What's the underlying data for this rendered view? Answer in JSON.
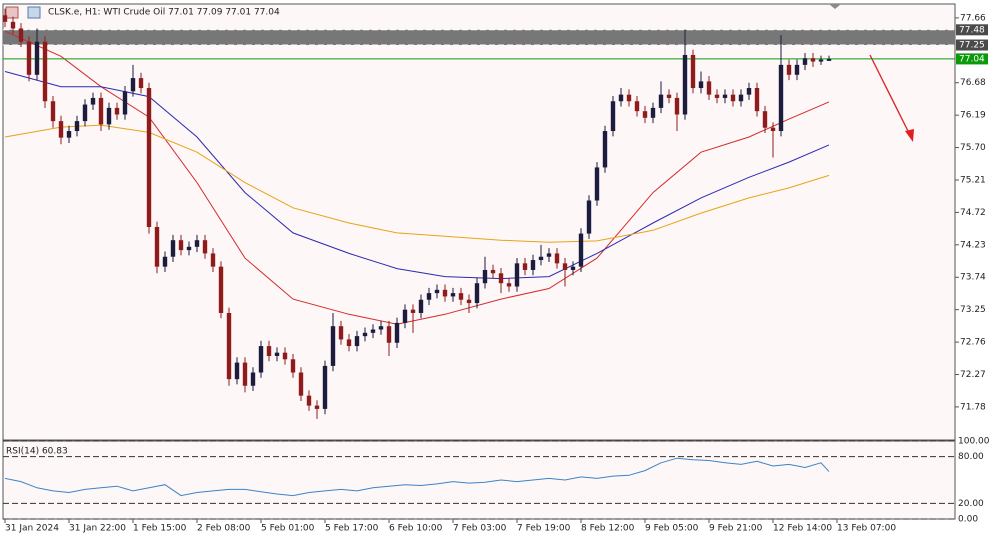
{
  "chart_data": {
    "type": "candlestick",
    "title": "CLSK.e, H1:  WTI Crude Oil  77.01 77.09 77.01 77.04",
    "bull_color": "#1c1c3c",
    "bear_color": "#8e1c1c",
    "candles": [
      [
        77.7,
        77.8,
        77.52,
        77.6
      ],
      [
        77.6,
        77.68,
        77.42,
        77.5
      ],
      [
        77.5,
        77.58,
        77.22,
        77.3
      ],
      [
        77.3,
        77.38,
        76.7,
        76.8
      ],
      [
        76.8,
        77.5,
        76.72,
        77.3
      ],
      [
        77.3,
        77.38,
        76.3,
        76.4
      ],
      [
        76.4,
        76.48,
        76.0,
        76.1
      ],
      [
        76.1,
        76.18,
        75.75,
        75.85
      ],
      [
        75.85,
        76.03,
        75.77,
        75.95
      ],
      [
        75.95,
        76.18,
        75.87,
        76.1
      ],
      [
        76.1,
        76.43,
        76.02,
        76.35
      ],
      [
        76.35,
        76.53,
        76.27,
        76.45
      ],
      [
        76.45,
        76.53,
        75.95,
        76.05
      ],
      [
        76.05,
        76.38,
        75.97,
        76.3
      ],
      [
        76.3,
        76.38,
        76.12,
        76.2
      ],
      [
        76.2,
        76.63,
        76.12,
        76.55
      ],
      [
        76.55,
        76.95,
        76.47,
        76.75
      ],
      [
        76.75,
        76.83,
        76.52,
        76.6
      ],
      [
        76.6,
        76.68,
        74.4,
        74.5
      ],
      [
        74.5,
        74.58,
        73.8,
        73.9
      ],
      [
        73.9,
        74.13,
        73.82,
        74.05
      ],
      [
        74.05,
        74.38,
        73.97,
        74.3
      ],
      [
        74.3,
        74.38,
        74.07,
        74.15
      ],
      [
        74.15,
        74.28,
        74.07,
        74.2
      ],
      [
        74.2,
        74.38,
        74.12,
        74.3
      ],
      [
        74.3,
        74.38,
        74.02,
        74.1
      ],
      [
        74.1,
        74.18,
        73.82,
        73.9
      ],
      [
        73.9,
        73.98,
        73.12,
        73.2
      ],
      [
        73.2,
        73.28,
        72.1,
        72.2
      ],
      [
        72.2,
        72.53,
        72.12,
        72.45
      ],
      [
        72.45,
        72.53,
        72.0,
        72.1
      ],
      [
        72.1,
        72.38,
        72.02,
        72.3
      ],
      [
        72.3,
        72.78,
        72.22,
        72.7
      ],
      [
        72.7,
        72.78,
        72.47,
        72.55
      ],
      [
        72.55,
        72.68,
        72.47,
        72.6
      ],
      [
        72.6,
        72.68,
        72.42,
        72.5
      ],
      [
        72.5,
        72.58,
        72.22,
        72.3
      ],
      [
        72.3,
        72.38,
        71.87,
        71.95
      ],
      [
        71.95,
        72.03,
        71.72,
        71.8
      ],
      [
        71.8,
        71.88,
        71.6,
        71.75
      ],
      [
        71.75,
        72.48,
        71.67,
        72.4
      ],
      [
        72.4,
        73.2,
        72.32,
        73.0
      ],
      [
        73.0,
        73.08,
        72.72,
        72.8
      ],
      [
        72.8,
        72.88,
        72.62,
        72.7
      ],
      [
        72.7,
        72.93,
        72.62,
        72.85
      ],
      [
        72.85,
        72.98,
        72.77,
        72.9
      ],
      [
        72.9,
        73.03,
        72.82,
        72.95
      ],
      [
        72.95,
        73.08,
        72.87,
        73.0
      ],
      [
        73.0,
        73.08,
        72.55,
        72.75
      ],
      [
        72.75,
        73.13,
        72.67,
        73.05
      ],
      [
        73.05,
        73.33,
        72.97,
        73.25
      ],
      [
        73.25,
        73.33,
        72.9,
        73.2
      ],
      [
        73.2,
        73.48,
        73.12,
        73.4
      ],
      [
        73.4,
        73.58,
        73.32,
        73.5
      ],
      [
        73.5,
        73.63,
        73.42,
        73.55
      ],
      [
        73.55,
        73.63,
        73.37,
        73.45
      ],
      [
        73.45,
        73.58,
        73.37,
        73.5
      ],
      [
        73.5,
        73.58,
        73.32,
        73.4
      ],
      [
        73.4,
        73.48,
        73.2,
        73.35
      ],
      [
        73.35,
        73.73,
        73.27,
        73.65
      ],
      [
        73.65,
        74.05,
        73.57,
        73.85
      ],
      [
        73.85,
        73.93,
        73.72,
        73.8
      ],
      [
        73.8,
        73.88,
        73.5,
        73.65
      ],
      [
        73.65,
        73.73,
        73.52,
        73.6
      ],
      [
        73.6,
        74.03,
        73.52,
        73.95
      ],
      [
        73.95,
        74.03,
        73.77,
        73.85
      ],
      [
        73.85,
        74.08,
        73.77,
        74.0
      ],
      [
        74.0,
        74.23,
        73.92,
        74.05
      ],
      [
        74.05,
        74.18,
        73.97,
        74.1
      ],
      [
        74.1,
        74.18,
        73.87,
        73.95
      ],
      [
        73.95,
        74.03,
        73.6,
        73.85
      ],
      [
        73.85,
        73.98,
        73.77,
        73.9
      ],
      [
        73.9,
        74.48,
        73.82,
        74.4
      ],
      [
        74.4,
        74.98,
        74.32,
        74.9
      ],
      [
        74.9,
        75.48,
        74.82,
        75.4
      ],
      [
        75.4,
        76.03,
        75.32,
        75.95
      ],
      [
        75.95,
        76.48,
        75.87,
        76.4
      ],
      [
        76.4,
        76.6,
        76.32,
        76.5
      ],
      [
        76.5,
        76.58,
        76.32,
        76.4
      ],
      [
        76.4,
        76.48,
        76.17,
        76.25
      ],
      [
        76.25,
        76.33,
        76.07,
        76.15
      ],
      [
        76.15,
        76.38,
        76.07,
        76.3
      ],
      [
        76.3,
        76.7,
        76.22,
        76.5
      ],
      [
        76.5,
        76.58,
        76.37,
        76.45
      ],
      [
        76.45,
        76.53,
        75.95,
        76.2
      ],
      [
        76.2,
        77.48,
        76.12,
        77.1
      ],
      [
        77.1,
        77.18,
        76.52,
        76.6
      ],
      [
        76.6,
        76.85,
        76.52,
        76.7
      ],
      [
        76.7,
        76.78,
        76.42,
        76.5
      ],
      [
        76.5,
        76.58,
        76.37,
        76.45
      ],
      [
        76.45,
        76.58,
        76.37,
        76.5
      ],
      [
        76.5,
        76.58,
        76.32,
        76.4
      ],
      [
        76.4,
        76.58,
        76.32,
        76.5
      ],
      [
        76.5,
        76.68,
        76.42,
        76.6
      ],
      [
        76.6,
        76.68,
        76.17,
        76.25
      ],
      [
        76.25,
        76.33,
        75.92,
        76.0
      ],
      [
        76.0,
        76.08,
        75.55,
        75.95
      ],
      [
        75.95,
        77.4,
        75.87,
        76.95
      ],
      [
        76.95,
        77.03,
        76.72,
        76.8
      ],
      [
        76.8,
        77.03,
        76.72,
        76.95
      ],
      [
        76.95,
        77.13,
        76.87,
        77.05
      ],
      [
        77.05,
        77.13,
        76.92,
        77.0
      ],
      [
        77.0,
        77.09,
        76.95,
        77.03
      ],
      [
        77.01,
        77.09,
        77.01,
        77.04
      ]
    ],
    "moving_averages": [
      {
        "color": "#d42a2a",
        "x": [
          0,
          7,
          12,
          18,
          24,
          30,
          36,
          43,
          49,
          55,
          62,
          68,
          74,
          81,
          87,
          93,
          98,
          103
        ],
        "values": [
          77.46,
          77.08,
          76.62,
          76.16,
          75.17,
          74.03,
          73.41,
          73.18,
          73.03,
          73.18,
          73.41,
          73.57,
          74.03,
          75.02,
          75.63,
          75.86,
          76.13,
          76.39
        ]
      },
      {
        "color": "#2a2ab4",
        "x": [
          0,
          7,
          12,
          18,
          24,
          30,
          36,
          43,
          49,
          55,
          62,
          68,
          74,
          81,
          87,
          93,
          98,
          103
        ],
        "values": [
          76.85,
          76.62,
          76.62,
          76.47,
          75.86,
          75.02,
          74.41,
          74.1,
          73.87,
          73.75,
          73.72,
          73.75,
          74.1,
          74.56,
          74.94,
          75.25,
          75.48,
          75.74
        ]
      },
      {
        "color": "#e8a317",
        "x": [
          0,
          7,
          12,
          18,
          24,
          30,
          36,
          43,
          49,
          55,
          62,
          68,
          74,
          81,
          87,
          93,
          98,
          103
        ],
        "values": [
          75.86,
          76.01,
          76.04,
          75.93,
          75.63,
          75.17,
          74.79,
          74.56,
          74.41,
          74.36,
          74.3,
          74.27,
          74.29,
          74.45,
          74.71,
          74.94,
          75.09,
          75.28
        ]
      }
    ],
    "zone": [
      77.25,
      77.48
    ],
    "zone_color": "#777777",
    "price_labels": [
      {
        "value": 77.48,
        "color": "#4a4a4a"
      },
      {
        "value": 77.25,
        "color": "#4a4a4a"
      },
      {
        "value": 77.04,
        "color": "#0a9a0a"
      }
    ],
    "current_price_line": {
      "value": 77.04,
      "color": "#0a9a0a"
    },
    "xlim": [
      -0.25,
      118.75
    ],
    "xticks": [
      {
        "value": 0,
        "label": "31 Jan 2024"
      },
      {
        "value": 8,
        "label": "31 Jan 22:00"
      },
      {
        "value": 16,
        "label": "1 Feb 15:00"
      },
      {
        "value": 24,
        "label": "2 Feb 08:00"
      },
      {
        "value": 32,
        "label": "5 Feb 01:00"
      },
      {
        "value": 40,
        "label": "5 Feb 17:00"
      },
      {
        "value": 48,
        "label": "6 Feb 10:00"
      },
      {
        "value": 56,
        "label": "7 Feb 03:00"
      },
      {
        "value": 64,
        "label": "7 Feb 19:00"
      },
      {
        "value": 72,
        "label": "8 Feb 12:00"
      },
      {
        "value": 80,
        "label": "9 Feb 05:00"
      },
      {
        "value": 88,
        "label": "9 Feb 21:00"
      },
      {
        "value": 96,
        "label": "12 Feb 14:00"
      },
      {
        "value": 104,
        "label": "13 Feb 07:00"
      }
    ],
    "ylim": [
      71.28,
      77.87
    ],
    "yticks": [
      77.66,
      76.68,
      76.19,
      {
        "value": 75.7,
        "label": "75.70"
      },
      75.21,
      74.72,
      74.23,
      73.74,
      73.25,
      72.76,
      72.27,
      71.78
    ],
    "rsi": {
      "label": "RSI(14) 60.83",
      "color": "#3d84c6",
      "x": [
        0,
        2,
        4,
        6,
        8,
        10,
        12,
        14,
        16,
        18,
        20,
        22,
        24,
        26,
        28,
        30,
        32,
        34,
        36,
        38,
        40,
        42,
        44,
        46,
        48,
        50,
        52,
        54,
        56,
        58,
        60,
        62,
        64,
        66,
        68,
        70,
        72,
        74,
        76,
        78,
        80,
        82,
        84,
        86,
        88,
        90,
        92,
        94,
        96,
        98,
        100,
        102,
        103
      ],
      "values": [
        52,
        48,
        40,
        36,
        34,
        38,
        40,
        42,
        36,
        40,
        44,
        30,
        34,
        36,
        38,
        38,
        35,
        32,
        30,
        34,
        36,
        38,
        36,
        40,
        42,
        44,
        43,
        45,
        48,
        46,
        47,
        50,
        48,
        50,
        52,
        50,
        54,
        52,
        55,
        56,
        62,
        72,
        78,
        76,
        75,
        72,
        70,
        74,
        68,
        70,
        66,
        72,
        60.83
      ],
      "ylim": [
        0,
        100
      ],
      "yticks": [
        {
          "value": 100,
          "label": "100.00"
        },
        {
          "value": 80,
          "label": "80.00"
        },
        {
          "value": 20,
          "label": "20.00"
        },
        {
          "value": 0,
          "label": "0.00"
        }
      ]
    }
  }
}
